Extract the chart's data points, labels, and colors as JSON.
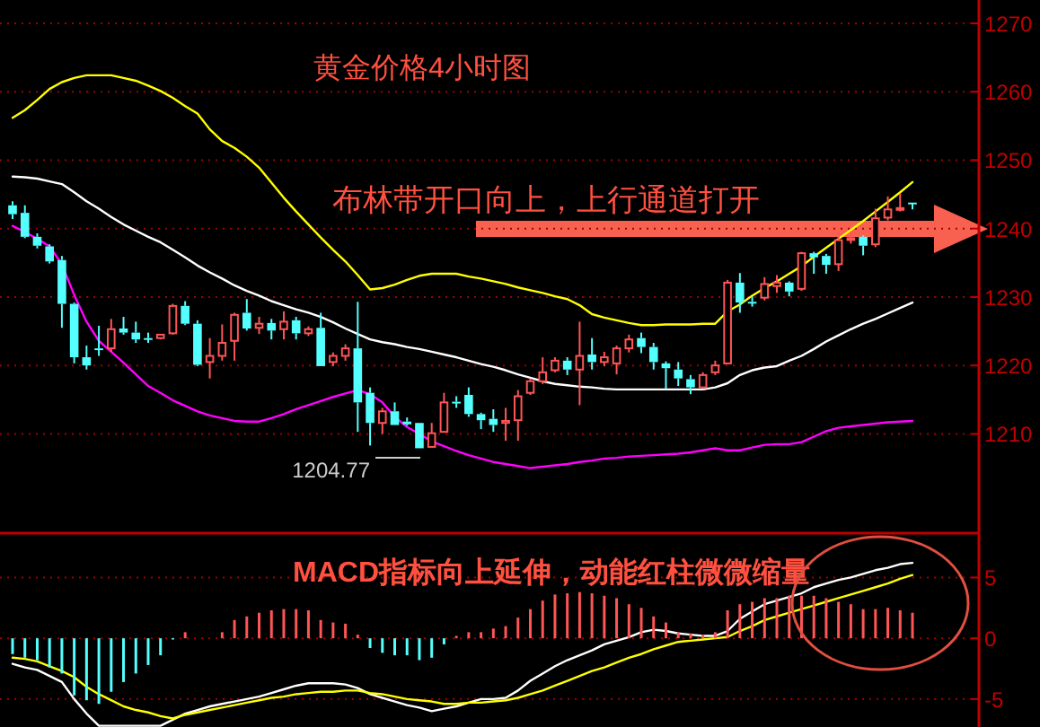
{
  "chart_data": [
    {
      "type": "candlestick",
      "title": "黄金价格4小时图",
      "annotations": [
        "布林带开口向上，上行通道打开",
        "1204.77"
      ],
      "categories": [
        null,
        null,
        null,
        null,
        null,
        null,
        null,
        null,
        null,
        null,
        null,
        null,
        null,
        null,
        null,
        null,
        null,
        null,
        null,
        null,
        null,
        null,
        null,
        null,
        null,
        null,
        null,
        null,
        null,
        null,
        null,
        null,
        null,
        null,
        null,
        null,
        null,
        null,
        null,
        null,
        null,
        null,
        null,
        null,
        null,
        null,
        null,
        null,
        null,
        null,
        null,
        null,
        null,
        null,
        null,
        null,
        null,
        null,
        null,
        null,
        null,
        null,
        null,
        null,
        null,
        null,
        null,
        null,
        null,
        null,
        null,
        null,
        null,
        null
      ],
      "ohlc": [
        [
          1243.4,
          1244.0,
          1241.4,
          1242.1
        ],
        [
          1242.3,
          1243.4,
          1238.6,
          1238.8
        ],
        [
          1238.8,
          1239.3,
          1237.1,
          1237.5
        ],
        [
          1237.4,
          1237.7,
          1234.9,
          1235.2
        ],
        [
          1235.4,
          1236.0,
          1225.5,
          1229.0
        ],
        [
          1229.0,
          1229.2,
          1220.3,
          1221.2
        ],
        [
          1221.2,
          1222.9,
          1219.4,
          1220.0
        ],
        [
          1222.5,
          1225.8,
          1221.4,
          1222.4
        ],
        [
          1222.5,
          1226.8,
          1222.0,
          1225.3
        ],
        [
          1225.4,
          1227.1,
          1224.5,
          1224.8
        ],
        [
          1224.8,
          1226.4,
          1223.3,
          1223.8
        ],
        [
          1224.0,
          1224.8,
          1223.3,
          1223.9
        ],
        [
          1224.0,
          1224.5,
          1223.8,
          1224.5
        ],
        [
          1224.7,
          1229.0,
          1224.5,
          1228.7
        ],
        [
          1228.7,
          1229.4,
          1225.9,
          1226.1
        ],
        [
          1226.1,
          1226.6,
          1219.9,
          1220.1
        ],
        [
          1220.5,
          1224.0,
          1218.1,
          1221.4
        ],
        [
          1221.4,
          1226.0,
          1220.7,
          1223.3
        ],
        [
          1223.6,
          1227.7,
          1220.7,
          1227.4
        ],
        [
          1227.7,
          1229.7,
          1225.1,
          1225.4
        ],
        [
          1225.5,
          1227.1,
          1224.6,
          1226.1
        ],
        [
          1226.2,
          1226.8,
          1223.8,
          1225.1
        ],
        [
          1225.3,
          1227.9,
          1223.8,
          1226.4
        ],
        [
          1226.6,
          1227.1,
          1223.8,
          1224.7
        ],
        [
          1224.7,
          1225.7,
          1224.3,
          1225.3
        ],
        [
          1225.5,
          1227.7,
          1219.9,
          1219.9
        ],
        [
          1220.5,
          1221.9,
          1219.9,
          1221.4
        ],
        [
          1221.4,
          1223.1,
          1220.7,
          1222.5
        ],
        [
          1222.5,
          1229.3,
          1210.3,
          1214.6
        ],
        [
          1216.0,
          1216.8,
          1208.3,
          1211.6
        ],
        [
          1211.6,
          1213.8,
          1210.0,
          1213.3
        ],
        [
          1213.3,
          1214.6,
          1211.3,
          1211.3
        ],
        [
          1211.8,
          1212.4,
          1211.2,
          1211.4
        ],
        [
          1211.6,
          1211.6,
          1207.9,
          1207.9
        ],
        [
          1208.1,
          1211.6,
          1208.1,
          1210.1
        ],
        [
          1210.3,
          1216.0,
          1210.3,
          1214.6
        ],
        [
          1214.7,
          1215.5,
          1213.8,
          1214.5
        ],
        [
          1215.7,
          1216.8,
          1212.5,
          1212.9
        ],
        [
          1212.9,
          1213.1,
          1210.7,
          1212.0
        ],
        [
          1212.2,
          1213.6,
          1210.3,
          1211.3
        ],
        [
          1211.6,
          1213.8,
          1209.0,
          1211.9
        ],
        [
          1212.0,
          1216.4,
          1209.0,
          1215.5
        ],
        [
          1216.0,
          1218.1,
          1215.7,
          1217.7
        ],
        [
          1217.7,
          1221.2,
          1217.3,
          1219.0
        ],
        [
          1219.3,
          1221.2,
          1219.0,
          1220.7
        ],
        [
          1220.7,
          1221.2,
          1218.6,
          1219.4
        ],
        [
          1219.4,
          1226.4,
          1214.2,
          1221.4
        ],
        [
          1221.6,
          1224.0,
          1219.4,
          1220.5
        ],
        [
          1220.5,
          1222.0,
          1219.9,
          1221.2
        ],
        [
          1220.3,
          1222.9,
          1218.7,
          1222.5
        ],
        [
          1222.5,
          1224.5,
          1221.9,
          1223.8
        ],
        [
          1224.0,
          1224.8,
          1221.8,
          1222.7
        ],
        [
          1222.7,
          1223.3,
          1219.4,
          1220.5
        ],
        [
          1220.3,
          1220.6,
          1216.6,
          1219.6
        ],
        [
          1219.4,
          1220.5,
          1217.0,
          1218.1
        ],
        [
          1218.0,
          1218.6,
          1215.8,
          1216.8
        ],
        [
          1216.8,
          1219.0,
          1216.7,
          1218.6
        ],
        [
          1219.0,
          1220.7,
          1218.6,
          1220.0
        ],
        [
          1220.3,
          1232.5,
          1220.3,
          1232.1
        ],
        [
          1232.1,
          1233.5,
          1227.7,
          1229.2
        ],
        [
          1229.3,
          1230.1,
          1228.6,
          1229.1
        ],
        [
          1229.9,
          1232.9,
          1229.5,
          1231.9
        ],
        [
          1231.6,
          1233.2,
          1230.6,
          1232.1
        ],
        [
          1232.1,
          1232.3,
          1230.1,
          1230.8
        ],
        [
          1231.2,
          1236.6,
          1230.9,
          1236.4
        ],
        [
          1236.4,
          1236.6,
          1233.4,
          1235.8
        ],
        [
          1236.0,
          1236.3,
          1233.4,
          1234.7
        ],
        [
          1234.8,
          1239.5,
          1233.8,
          1238.3
        ],
        [
          1238.6,
          1239.5,
          1237.8,
          1238.6
        ],
        [
          1238.8,
          1239.0,
          1236.1,
          1237.5
        ],
        [
          1237.7,
          1242.9,
          1237.3,
          1241.5
        ],
        [
          1241.6,
          1244.7,
          1241.2,
          1242.8
        ],
        [
          1242.9,
          1245.1,
          1242.5,
          1243.0
        ],
        [
          1243.8,
          1243.8,
          1242.8,
          1243.7
        ]
      ],
      "colors": [
        "#54ffff",
        "#54ffff",
        "#54ffff",
        "#54ffff",
        "#54ffff",
        "#54ffff",
        "#54ffff",
        "#54ffff",
        "#ff5555",
        "#54ffff",
        "#54ffff",
        "#54ffff",
        "#ff5555",
        "#ff5555",
        "#54ffff",
        "#54ffff",
        "#ff5555",
        "#ff5555",
        "#ff5555",
        "#54ffff",
        "#ff5555",
        "#54ffff",
        "#ff5555",
        "#54ffff",
        "#ff5555",
        "#54ffff",
        "#ff5555",
        "#ff5555",
        "#54ffff",
        "#54ffff",
        "#ff5555",
        "#54ffff",
        "#54ffff",
        "#54ffff",
        "#ff5555",
        "#ff5555",
        "#54ffff",
        "#54ffff",
        "#54ffff",
        "#54ffff",
        "#ff5555",
        "#ff5555",
        "#ff5555",
        "#ff5555",
        "#ff5555",
        "#54ffff",
        "#ff5555",
        "#54ffff",
        "#ff5555",
        "#ff5555",
        "#ff5555",
        "#54ffff",
        "#54ffff",
        "#54ffff",
        "#54ffff",
        "#54ffff",
        "#ff5555",
        "#ff5555",
        "#ff5555",
        "#54ffff",
        "#54ffff",
        "#ff5555",
        "#ff5555",
        "#54ffff",
        "#ff5555",
        "#54ffff",
        "#54ffff",
        "#ff5555",
        "#ff5555",
        "#54ffff",
        "#ff5555",
        "#ff5555",
        "#ff5555",
        "#54ffff"
      ],
      "series": [
        {
          "type": "line",
          "color": "#ffff00",
          "values": [
            1256.2,
            1257.3,
            1258.8,
            1260.4,
            1261.4,
            1262.0,
            1262.4,
            1262.4,
            1262.4,
            1262.0,
            1261.6,
            1260.9,
            1260.1,
            1259.1,
            1257.9,
            1256.8,
            1254.5,
            1252.8,
            1251.8,
            1250.5,
            1248.9,
            1246.7,
            1244.5,
            1242.5,
            1240.6,
            1238.7,
            1236.9,
            1235.2,
            1233.2,
            1231.1,
            1231.3,
            1231.8,
            1232.5,
            1233.1,
            1233.4,
            1233.4,
            1233.4,
            1233.0,
            1232.7,
            1232.3,
            1231.9,
            1231.4,
            1231.0,
            1230.6,
            1230.1,
            1229.7,
            1228.8,
            1227.5,
            1227.0,
            1226.6,
            1226.2,
            1225.9,
            1225.9,
            1226.0,
            1226.0,
            1226.0,
            1226.1,
            1226.1,
            1227.9,
            1228.9,
            1230.2,
            1231.3,
            1232.3,
            1233.4,
            1234.5,
            1235.9,
            1237.2,
            1238.5,
            1239.8,
            1241.1,
            1242.5,
            1243.9,
            1245.3,
            1246.8
          ]
        },
        {
          "type": "line",
          "color": "#ffffff",
          "values": [
            1247.6,
            1247.5,
            1247.3,
            1246.9,
            1246.5,
            1245.3,
            1244.0,
            1242.9,
            1241.7,
            1240.6,
            1239.7,
            1238.8,
            1238.0,
            1236.9,
            1235.8,
            1234.6,
            1233.6,
            1232.7,
            1231.7,
            1230.9,
            1230.2,
            1229.4,
            1228.8,
            1228.2,
            1227.7,
            1227.1,
            1226.3,
            1225.4,
            1224.6,
            1223.8,
            1223.4,
            1223.1,
            1222.7,
            1222.4,
            1222.0,
            1221.6,
            1221.2,
            1220.7,
            1220.2,
            1219.8,
            1219.3,
            1218.7,
            1218.2,
            1217.7,
            1217.3,
            1217.1,
            1216.9,
            1216.8,
            1216.6,
            1216.5,
            1216.5,
            1216.5,
            1216.5,
            1216.5,
            1216.5,
            1216.5,
            1216.5,
            1216.8,
            1217.4,
            1218.6,
            1219.3,
            1219.7,
            1219.9,
            1220.7,
            1221.4,
            1222.4,
            1223.5,
            1224.4,
            1225.3,
            1226.1,
            1226.8,
            1227.6,
            1228.4,
            1229.2
          ]
        },
        {
          "type": "line",
          "color": "#ff00ff",
          "values": [
            1240.4,
            1239.5,
            1238.5,
            1237.4,
            1234.8,
            1230.3,
            1226.4,
            1223.6,
            1222.0,
            1220.4,
            1218.7,
            1217.0,
            1216.0,
            1214.9,
            1214.1,
            1213.3,
            1212.7,
            1212.3,
            1211.9,
            1211.8,
            1211.8,
            1212.3,
            1212.9,
            1213.6,
            1214.2,
            1214.8,
            1215.4,
            1215.9,
            1216.4,
            1215.8,
            1214.6,
            1212.5,
            1211.0,
            1210.0,
            1208.9,
            1208.2,
            1207.5,
            1206.9,
            1206.4,
            1205.9,
            1205.6,
            1205.3,
            1205.0,
            1205.2,
            1205.4,
            1205.6,
            1205.9,
            1206.1,
            1206.4,
            1206.5,
            1206.7,
            1206.8,
            1206.9,
            1207.0,
            1207.1,
            1207.3,
            1207.6,
            1207.9,
            1207.6,
            1207.6,
            1208.0,
            1208.4,
            1208.5,
            1208.5,
            1208.8,
            1209.6,
            1210.4,
            1210.9,
            1211.1,
            1211.3,
            1211.5,
            1211.7,
            1211.8,
            1211.9
          ]
        }
      ],
      "ylim": [
        1195.5,
        1273.4
      ],
      "yticks": [
        1210,
        1220,
        1230,
        1240,
        1250,
        1260,
        1270
      ],
      "grid": "y",
      "tick_labels": "y"
    },
    {
      "type": "bar",
      "title": "MACD指标向上延伸，动能红柱微微缩量",
      "categories": [
        null,
        null,
        null,
        null,
        null,
        null,
        null,
        null,
        null,
        null,
        null,
        null,
        null,
        null,
        null,
        null,
        null,
        null,
        null,
        null,
        null,
        null,
        null,
        null,
        null,
        null,
        null,
        null,
        null,
        null,
        null,
        null,
        null,
        null,
        null,
        null,
        null,
        null,
        null,
        null,
        null,
        null,
        null,
        null,
        null,
        null,
        null,
        null,
        null,
        null,
        null,
        null,
        null,
        null,
        null,
        null,
        null,
        null,
        null,
        null,
        null,
        null,
        null,
        null,
        null,
        null,
        null,
        null,
        null,
        null,
        null,
        null,
        null,
        null
      ],
      "values": [
        -1.3,
        -1.6,
        -1.8,
        -2.4,
        -2.9,
        -4.7,
        -5.1,
        -5.4,
        -4.4,
        -3.6,
        -2.9,
        -2.2,
        -1.4,
        -0.1,
        0.5,
        null,
        null,
        0.5,
        1.5,
        1.8,
        2.1,
        2.3,
        2.4,
        2.4,
        2.3,
        1.5,
        1.3,
        1.2,
        0.3,
        -0.8,
        -1.2,
        -1.4,
        -1.4,
        -1.8,
        -1.6,
        -0.5,
        0.2,
        0.5,
        0.5,
        0.8,
        1.0,
        1.7,
        2.4,
        3.1,
        3.6,
        3.7,
        3.8,
        3.7,
        3.5,
        3.3,
        2.8,
        2.5,
        1.8,
        1.3,
        0.5,
        0.4,
        0.3,
        0.5,
        2.3,
        2.8,
        3.0,
        3.3,
        3.3,
        3.5,
        3.5,
        3.5,
        3.3,
        3.0,
        2.8,
        2.4,
        2.4,
        2.5,
        2.3,
        2.1
      ],
      "colors": [
        "#54ffff",
        "#54ffff",
        "#54ffff",
        "#54ffff",
        "#54ffff",
        "#54ffff",
        "#54ffff",
        "#54ffff",
        "#54ffff",
        "#54ffff",
        "#54ffff",
        "#54ffff",
        "#54ffff",
        "#54ffff",
        "#ff5555",
        null,
        null,
        "#ff5555",
        "#ff5555",
        "#ff5555",
        "#ff5555",
        "#ff5555",
        "#ff5555",
        "#ff5555",
        "#ff5555",
        "#ff5555",
        "#ff5555",
        "#ff5555",
        "#ff5555",
        "#54ffff",
        "#54ffff",
        "#54ffff",
        "#54ffff",
        "#54ffff",
        "#54ffff",
        "#54ffff",
        "#ff5555",
        "#ff5555",
        "#ff5555",
        "#ff5555",
        "#ff5555",
        "#ff5555",
        "#ff5555",
        "#ff5555",
        "#ff5555",
        "#ff5555",
        "#ff5555",
        "#ff5555",
        "#ff5555",
        "#ff5555",
        "#ff5555",
        "#ff5555",
        "#ff5555",
        "#ff5555",
        "#ff5555",
        "#ff5555",
        "#ff5555",
        "#ff5555",
        "#ff5555",
        "#ff5555",
        "#ff5555",
        "#ff5555",
        "#ff5555",
        "#ff5555",
        "#ff5555",
        "#ff5555",
        "#ff5555",
        "#ff5555",
        "#ff5555",
        "#ff5555",
        "#ff5555",
        "#ff5555",
        "#ff5555",
        "#ff5555"
      ],
      "series": [
        {
          "type": "line",
          "color": "#ffffff",
          "values": [
            -2.1,
            -2.4,
            -2.6,
            -3.1,
            -3.6,
            -5.0,
            -6.2,
            -7.2,
            -7.2,
            -7.2,
            -7.2,
            -7.2,
            -7.2,
            -6.7,
            -6.2,
            -5.9,
            -5.6,
            -5.4,
            -5.2,
            -5.0,
            -4.8,
            -4.5,
            -4.2,
            -3.9,
            -3.7,
            -3.7,
            -3.7,
            -3.8,
            -4.1,
            -4.6,
            -4.9,
            -5.2,
            -5.5,
            -5.7,
            -6.0,
            -5.8,
            -5.6,
            -5.3,
            -5.0,
            -5.0,
            -4.9,
            -4.3,
            -3.5,
            -2.9,
            -2.3,
            -1.8,
            -1.4,
            -1.0,
            -0.5,
            -0.2,
            0.1,
            0.5,
            0.7,
            0.6,
            0.4,
            0.3,
            0.2,
            0.2,
            0.6,
            1.6,
            2.2,
            2.8,
            3.1,
            3.4,
            3.7,
            4.2,
            4.5,
            4.8,
            5.0,
            5.3,
            5.6,
            5.8,
            6.1,
            6.2
          ]
        },
        {
          "type": "line",
          "color": "#ffff00",
          "values": [
            -1.6,
            -1.7,
            -1.9,
            -2.3,
            -2.7,
            -3.2,
            -4.0,
            -4.6,
            -5.1,
            -5.6,
            -5.9,
            -6.1,
            -6.4,
            -6.6,
            -6.3,
            -6.1,
            -5.9,
            -5.7,
            -5.5,
            -5.3,
            -5.1,
            -4.9,
            -4.8,
            -4.6,
            -4.5,
            -4.4,
            -4.4,
            -4.3,
            -4.3,
            -4.5,
            -4.6,
            -4.8,
            -5.0,
            -5.1,
            -5.2,
            -5.4,
            -5.4,
            -5.3,
            -5.3,
            -5.2,
            -5.1,
            -4.9,
            -4.6,
            -4.3,
            -3.9,
            -3.5,
            -3.1,
            -2.7,
            -2.4,
            -2.0,
            -1.6,
            -1.3,
            -0.9,
            -0.6,
            -0.3,
            -0.2,
            -0.1,
            0.0,
            0.1,
            0.6,
            1.0,
            1.5,
            1.8,
            2.1,
            2.4,
            2.7,
            3.0,
            3.3,
            3.6,
            3.9,
            4.2,
            4.5,
            4.9,
            5.2
          ]
        }
      ],
      "ylim": [
        -7.3,
        8.65
      ],
      "yticks": [
        -5,
        0,
        5
      ],
      "grid": "y",
      "tick_labels": "y"
    }
  ]
}
